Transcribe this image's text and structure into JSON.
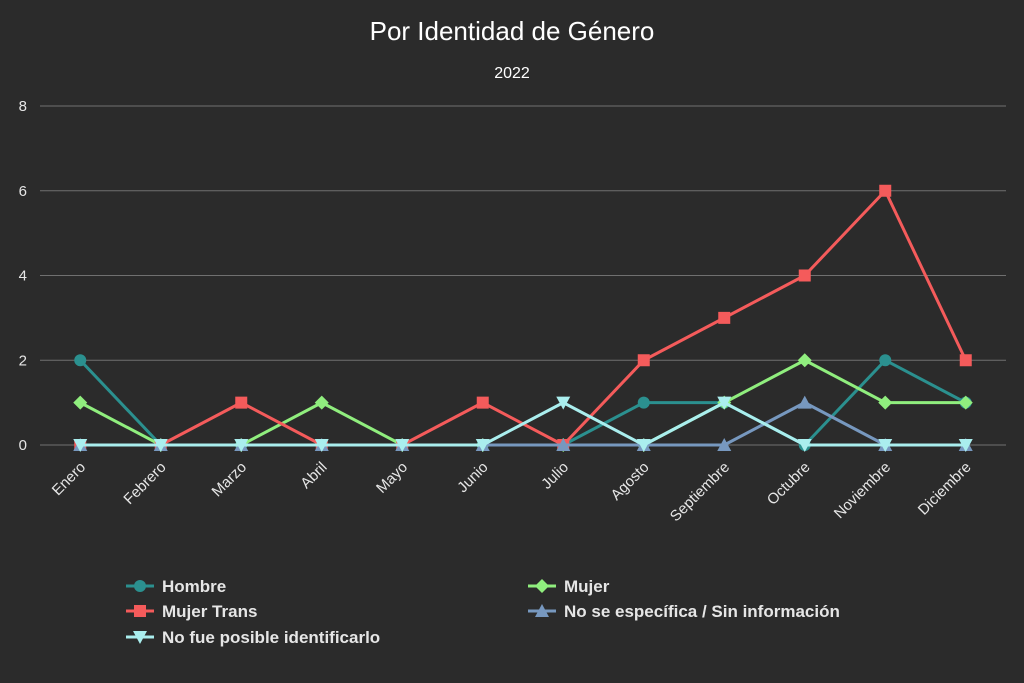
{
  "chart_data": {
    "type": "line",
    "title": "Por Identidad de Género",
    "subtitle": "2022",
    "xlabel": "",
    "ylabel": "",
    "ylim": [
      0,
      8
    ],
    "yticks": [
      "0",
      "2",
      "4",
      "6",
      "8"
    ],
    "grid": true,
    "legend_position": "bottom",
    "categories": [
      "Enero",
      "Febrero",
      "Marzo",
      "Abril",
      "Mayo",
      "Junio",
      "Julio",
      "Agosto",
      "Septiembre",
      "Octubre",
      "Noviembre",
      "Diciembre"
    ],
    "series": [
      {
        "name": "Hombre",
        "color": "#2b908f",
        "marker": "circle",
        "values": [
          2,
          0,
          0,
          0,
          0,
          0,
          0,
          1,
          1,
          0,
          2,
          1
        ]
      },
      {
        "name": "Mujer",
        "color": "#90ee7e",
        "marker": "diamond",
        "values": [
          1,
          0,
          0,
          1,
          0,
          0,
          0,
          0,
          1,
          2,
          1,
          1
        ]
      },
      {
        "name": "Mujer Trans",
        "color": "#f45b5b",
        "marker": "square",
        "values": [
          0,
          0,
          1,
          0,
          0,
          1,
          0,
          2,
          3,
          4,
          6,
          2
        ]
      },
      {
        "name": "No se específica / Sin información",
        "color": "#7798bf",
        "marker": "triangle",
        "values": [
          0,
          0,
          0,
          0,
          0,
          0,
          0,
          0,
          0,
          1,
          0,
          0
        ]
      },
      {
        "name": "No fue posible identificarlo",
        "color": "#aaeeee",
        "marker": "triangle-down",
        "values": [
          0,
          0,
          0,
          0,
          0,
          0,
          1,
          0,
          1,
          0,
          0,
          0
        ]
      }
    ]
  }
}
